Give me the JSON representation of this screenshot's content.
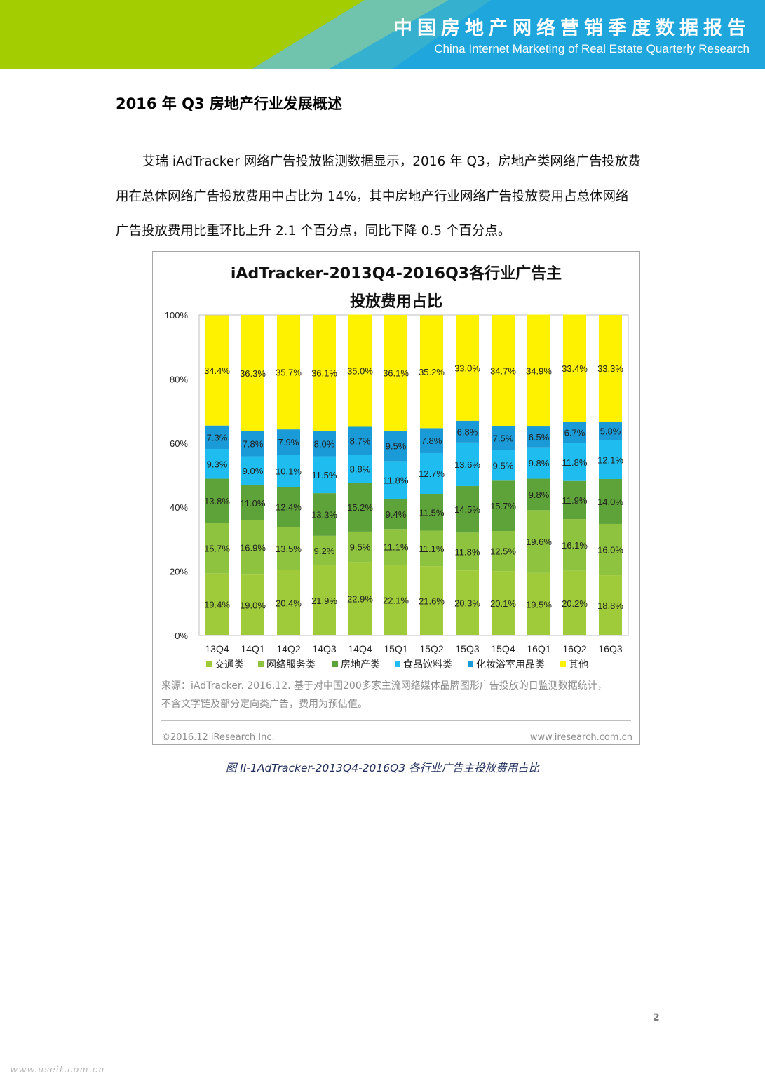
{
  "banner": {
    "title": "中国房地产网络营销季度数据报告",
    "subtitle": "China Internet Marketing of Real Estate Quarterly Research",
    "colors": {
      "green": "#a3cd00",
      "blue": "#1ea6dd",
      "teal": "#7fc8a4"
    }
  },
  "section_title": "2016 年 Q3 房地产行业发展概述",
  "paragraph": {
    "line1": "艾瑞 iAdTracker 网络广告投放监测数据显示，2016 年 Q3，房地产类网络广告投放费",
    "line2": "用在总体网络广告投放费用中占比为  14%，其中房地产行业网络广告投放费用占总体网络",
    "line3": "广告投放费用比重环比上升 2.1 个百分点，同比下降 0.5 个百分点。"
  },
  "chart_data": {
    "type": "bar",
    "stacked": true,
    "title_line1": "iAdTracker-2013Q4-2016Q3各行业广告主",
    "title_line2": "投放费用占比",
    "categories": [
      "13Q4",
      "14Q1",
      "14Q2",
      "14Q3",
      "14Q4",
      "15Q1",
      "15Q2",
      "15Q3",
      "15Q4",
      "16Q1",
      "16Q2",
      "16Q3"
    ],
    "y_ticks": [
      "0%",
      "20%",
      "40%",
      "60%",
      "80%",
      "100%"
    ],
    "ylim": [
      0,
      100
    ],
    "legend_position": "bottom",
    "series": [
      {
        "name": "交通类",
        "color": "#9fcb3a",
        "values": [
          19.4,
          19.0,
          20.4,
          21.9,
          22.9,
          22.1,
          21.6,
          20.3,
          20.1,
          19.5,
          20.2,
          18.8
        ]
      },
      {
        "name": "网络服务类",
        "color": "#8dc33e",
        "values": [
          15.7,
          16.9,
          13.5,
          9.2,
          9.5,
          11.1,
          11.1,
          11.8,
          12.5,
          19.6,
          16.1,
          16.0
        ]
      },
      {
        "name": "房地产类",
        "color": "#5ea339",
        "values": [
          13.8,
          11.0,
          12.4,
          13.3,
          15.2,
          9.4,
          11.5,
          14.5,
          15.7,
          9.8,
          11.9,
          14.0
        ]
      },
      {
        "name": "食品饮料类",
        "color": "#1fbcef",
        "values": [
          9.3,
          9.0,
          10.1,
          11.5,
          8.8,
          11.8,
          12.7,
          13.6,
          9.5,
          9.8,
          11.8,
          12.1
        ]
      },
      {
        "name": "化妆浴室用品类",
        "color": "#1a9ad6",
        "values": [
          7.3,
          7.8,
          7.9,
          8.0,
          8.7,
          9.5,
          7.8,
          6.8,
          7.5,
          6.5,
          6.7,
          5.8
        ]
      },
      {
        "name": "其他",
        "color": "#fff200",
        "values": [
          34.4,
          36.3,
          35.7,
          36.1,
          35.0,
          36.1,
          35.2,
          33.0,
          34.7,
          34.9,
          33.4,
          33.3
        ]
      }
    ],
    "data_labels": [
      [
        "19.4%",
        "19.0%",
        "20.4%",
        "21.9%",
        "22.9%",
        "22.1%",
        "21.6%",
        "20.3%",
        "20.1%",
        "19.5%",
        "20.2%",
        "18.8%"
      ],
      [
        "15.7%",
        "16.9%",
        "13.5%",
        "9.2%",
        "9.5%",
        "11.1%",
        "11.1%",
        "11.8%",
        "12.5%",
        "19.6%",
        "16.1%",
        "16.0%"
      ],
      [
        "13.8%",
        "11.0%",
        "12.4%",
        "13.3%",
        "15.2%",
        "9.4%",
        "11.5%",
        "14.5%",
        "15.7%",
        "9.8%",
        "11.9%",
        "14.0%"
      ],
      [
        "9.3%",
        "9.0%",
        "10.1%",
        "11.5%",
        "8.8%",
        "11.8%",
        "12.7%",
        "13.6%",
        "9.5%",
        "9.8%",
        "11.8%",
        "12.1%"
      ],
      [
        "7.3%",
        "7.8%",
        "7.9%",
        "8.0%",
        "8.7%",
        "9.5%",
        "7.8%",
        "6.8%",
        "7.5%",
        "6.5%",
        "6.7%",
        "5.8%"
      ],
      [
        "34.4%",
        "36.3%",
        "35.7%",
        "36.1%",
        "35.0%",
        "36.1%",
        "35.2%",
        "33.0%",
        "34.7%",
        "34.9%",
        "33.4%",
        "33.3%"
      ]
    ]
  },
  "chart_source": {
    "line1": "来源：iAdTracker. 2016.12. 基于对中国200多家主流网络媒体品牌图形广告投放的日监测数据统计，",
    "line2": "不含文字链及部分定向类广告，费用为预估值。"
  },
  "chart_footer": {
    "left": "©2016.12 iResearch Inc.",
    "right": "www.iresearch.com.cn"
  },
  "caption": "图 II-1AdTracker-2013Q4-2016Q3 各行业广告主投放费用占比",
  "page_number": "2",
  "watermark": "www.useit.com.cn"
}
